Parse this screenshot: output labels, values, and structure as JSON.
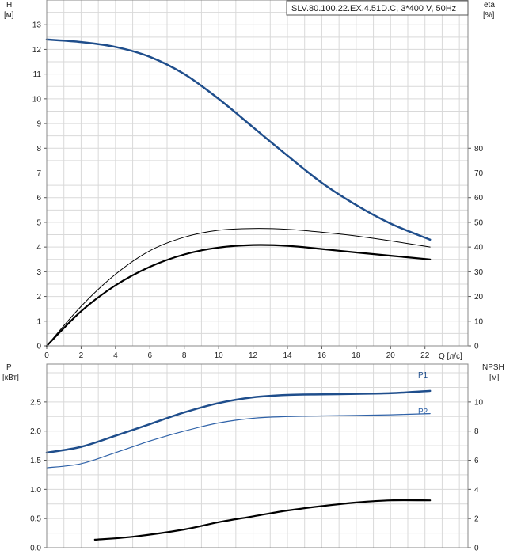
{
  "chart_data": [
    {
      "type": "line",
      "title": "SLV.80.100.22.EX.4.51D.C, 3*400 V, 50Hz",
      "xlabel": "Q [л/с]",
      "x_ticks": [
        "0",
        "2",
        "4",
        "6",
        "8",
        "10",
        "12",
        "14",
        "16",
        "18",
        "20",
        "22"
      ],
      "xlim": [
        0,
        24.5
      ],
      "y_left": {
        "label": "H",
        "unit": "[м]",
        "ylim": [
          0,
          14
        ],
        "ticks": [
          "0",
          "1",
          "2",
          "3",
          "4",
          "5",
          "6",
          "7",
          "8",
          "9",
          "10",
          "11",
          "12",
          "13"
        ]
      },
      "y_right": {
        "label": "eta",
        "unit": "[%]",
        "ylim": [
          0,
          140
        ],
        "ticks": [
          "0",
          "10",
          "20",
          "30",
          "40",
          "50",
          "60",
          "70",
          "80"
        ]
      },
      "grid": true,
      "series": [
        {
          "axis": "left",
          "color": "#1f4e8c",
          "width": 2.5,
          "x": [
            0,
            2,
            4,
            6,
            8,
            10,
            12,
            14,
            16,
            18,
            20,
            22.3
          ],
          "y": [
            12.4,
            12.3,
            12.1,
            11.7,
            11.0,
            10.0,
            8.85,
            7.7,
            6.6,
            5.7,
            4.95,
            4.3
          ]
        },
        {
          "axis": "right",
          "color": "#000000",
          "width": 1,
          "x": [
            0,
            2,
            4,
            6,
            8,
            10,
            12,
            14,
            16,
            18,
            20,
            22.3
          ],
          "y": [
            0,
            16,
            29,
            38.5,
            44,
            46.8,
            47.5,
            47.2,
            46,
            44.5,
            42.5,
            40
          ]
        },
        {
          "axis": "right",
          "color": "#000000",
          "width": 2.2,
          "x": [
            0,
            2,
            4,
            6,
            8,
            10,
            12,
            14,
            16,
            18,
            20,
            22.3
          ],
          "y": [
            0,
            14,
            24.5,
            32,
            37,
            39.8,
            40.8,
            40.5,
            39.2,
            37.8,
            36.5,
            35
          ]
        }
      ]
    },
    {
      "type": "line",
      "xlim": [
        0,
        24.5
      ],
      "y_left": {
        "label": "P",
        "unit": "[кВт]",
        "ylim": [
          0,
          3.15
        ],
        "ticks": [
          "0.0",
          "0.5",
          "1.0",
          "1.5",
          "2.0",
          "2.5"
        ]
      },
      "y_right": {
        "label": "NPSH",
        "unit": "[м]",
        "ylim": [
          0,
          12.6
        ],
        "ticks": [
          "0",
          "2",
          "4",
          "6",
          "8",
          "10"
        ]
      },
      "grid": true,
      "series": [
        {
          "name": "P1",
          "axis": "left",
          "color": "#1f4e8c",
          "width": 2.5,
          "x": [
            0,
            2,
            4,
            6,
            8,
            10,
            12,
            14,
            16,
            18,
            20,
            22.3
          ],
          "y": [
            1.63,
            1.73,
            1.92,
            2.12,
            2.32,
            2.48,
            2.58,
            2.62,
            2.63,
            2.64,
            2.65,
            2.69
          ]
        },
        {
          "name": "P2",
          "axis": "left",
          "color": "#2f62a8",
          "width": 1.2,
          "x": [
            0,
            2,
            4,
            6,
            8,
            10,
            12,
            14,
            16,
            18,
            20,
            22.3
          ],
          "y": [
            1.37,
            1.44,
            1.63,
            1.83,
            2.0,
            2.14,
            2.22,
            2.25,
            2.26,
            2.27,
            2.28,
            2.3
          ]
        },
        {
          "axis": "right",
          "color": "#000000",
          "width": 2.2,
          "x": [
            2.8,
            5,
            8,
            10,
            12,
            14,
            16,
            18,
            20,
            22.3
          ],
          "y": [
            0.55,
            0.75,
            1.25,
            1.75,
            2.15,
            2.55,
            2.85,
            3.1,
            3.25,
            3.25
          ]
        }
      ]
    }
  ]
}
